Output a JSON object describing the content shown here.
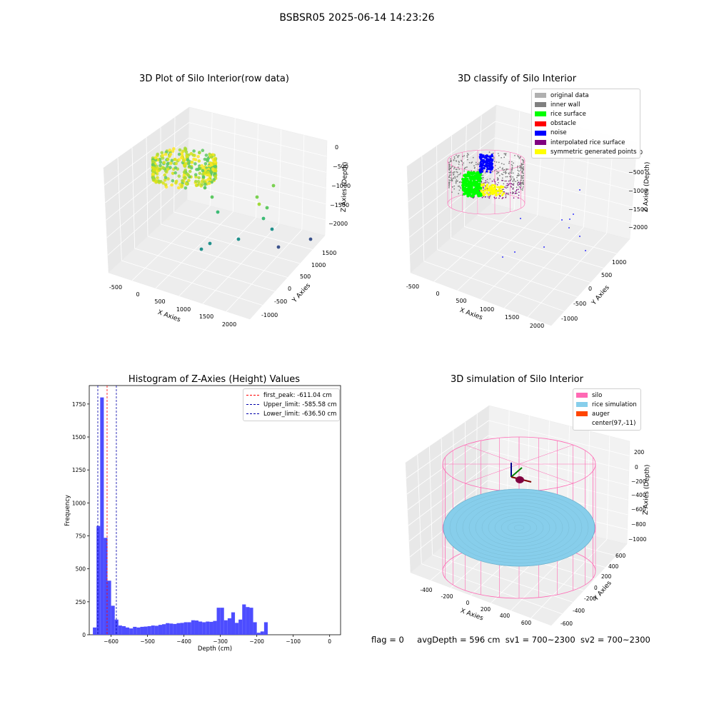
{
  "suptitle": "BSBSR05 2025-06-14 14:23:26",
  "footer": {
    "flag": "flag = 0",
    "avg": "avgDepth = 596 cm",
    "sv1": "sv1 = 700~2300",
    "sv2": "sv2 = 700~2300"
  },
  "colors": {
    "histogram_bar": "#4d4dff",
    "first_peak": "#ff0000",
    "limits": "#0000aa",
    "silo": "#ff69b4",
    "rice": "#87ceeb",
    "auger": "#ff4500"
  },
  "chart_data": [
    {
      "type": "scatter",
      "title": "3D Plot of Silo Interior(row data)",
      "xlabel": "X Axies",
      "ylabel": "Y Axies",
      "zlabel": "Z Axies (Depth)",
      "x_ticks": [
        "-500",
        "0",
        "500",
        "1000",
        "1500",
        "2000"
      ],
      "y_ticks": [
        "-1000",
        "-500",
        "0",
        "500",
        "1000",
        "1500"
      ],
      "z_ticks": [
        "0",
        "−500",
        "−1000",
        "−1500",
        "−2000"
      ],
      "colormap": "viridis"
    },
    {
      "type": "scatter",
      "title": "3D classify of Silo Interior",
      "xlabel": "X Axies",
      "ylabel": "Y Axies",
      "zlabel": "Z Axies (Depth)",
      "x_ticks": [
        "-500",
        "0",
        "500",
        "1000",
        "1500",
        "2000"
      ],
      "y_ticks": [
        "-1000",
        "-500",
        "0",
        "500",
        "1000"
      ],
      "z_ticks": [
        "0",
        "−500",
        "−1000",
        "−1500",
        "−2000"
      ],
      "legend": [
        {
          "label": "original data",
          "color": "#b0b0b0"
        },
        {
          "label": "inner wall",
          "color": "#808080"
        },
        {
          "label": "rice surface",
          "color": "#00ff00"
        },
        {
          "label": "obstacle",
          "color": "#ff0000"
        },
        {
          "label": "noise",
          "color": "#0000ff"
        },
        {
          "label": "interpolated rice surface",
          "color": "#800080"
        },
        {
          "label": "symmetric generated points",
          "color": "#ffff00"
        }
      ]
    },
    {
      "type": "bar",
      "title": "Histogram of Z-Axies (Height) Values",
      "xlabel": "Depth (cm)",
      "ylabel": "Frequency",
      "xlim": [
        -660,
        30
      ],
      "ylim": [
        0,
        1890
      ],
      "x_ticks": [
        -600,
        -500,
        -400,
        -300,
        -200,
        -100,
        0
      ],
      "y_ticks": [
        0,
        250,
        500,
        750,
        1000,
        1250,
        1500,
        1750
      ],
      "bin_start": -650,
      "bin_width": 10,
      "values": [
        55,
        825,
        1800,
        735,
        410,
        220,
        115,
        70,
        65,
        55,
        48,
        60,
        55,
        60,
        62,
        65,
        70,
        68,
        75,
        80,
        88,
        85,
        82,
        88,
        90,
        95,
        95,
        110,
        108,
        100,
        95,
        100,
        98,
        105,
        205,
        205,
        110,
        125,
        170,
        90,
        115,
        230,
        210,
        205,
        95,
        15,
        25,
        95
      ],
      "lines": [
        {
          "label": "first_peak: -611.04 cm",
          "x": -611.04,
          "color": "#ff0000"
        },
        {
          "label": "Upper_limit: -585.58 cm",
          "x": -585.58,
          "color": "#0000aa"
        },
        {
          "label": "Lower_limit: -636.50 cm",
          "x": -636.5,
          "color": "#0000aa"
        }
      ]
    },
    {
      "type": "scatter",
      "title": "3D simulation of Silo Interior",
      "xlabel": "X Axies",
      "ylabel": "Y Axies",
      "zlabel": "Z Axies (Depth)",
      "x_ticks": [
        "-400",
        "-200",
        "0",
        "200",
        "400",
        "600"
      ],
      "y_ticks": [
        "-600",
        "-400",
        "-200",
        "0",
        "200",
        "400",
        "600"
      ],
      "z_ticks": [
        "200",
        "0",
        "−200",
        "−400",
        "−600",
        "−800",
        "−1000"
      ],
      "legend": [
        {
          "label": "silo",
          "color": "#ff69b4"
        },
        {
          "label": "rice simulation",
          "color": "#87ceeb"
        },
        {
          "label": "auger",
          "color": "#ff4500"
        },
        {
          "label": "center(97,-11)",
          "color": ""
        }
      ]
    }
  ]
}
